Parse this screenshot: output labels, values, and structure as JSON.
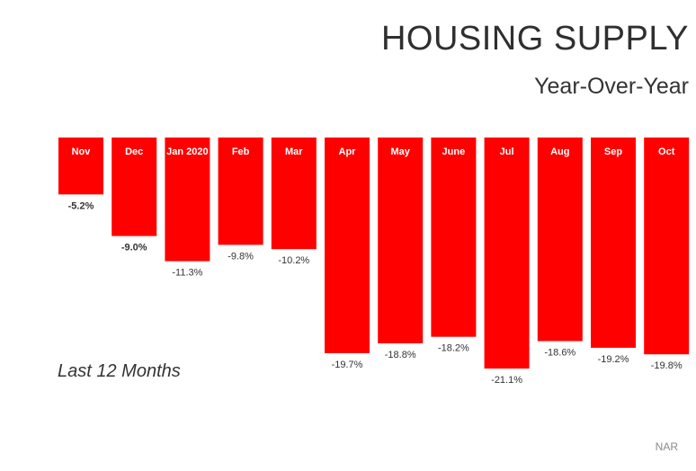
{
  "header": {
    "title": "HOUSING SUPPLY",
    "subtitle": "Year-Over-Year"
  },
  "note": "Last 12 Months",
  "source": "NAR",
  "colors": {
    "bar": "#ff0000",
    "bar_label_text": "#ffffff",
    "value_text": "#333333"
  },
  "chart_data": {
    "type": "bar",
    "categories": [
      "Nov",
      "Dec",
      "Jan 2020",
      "Feb",
      "Mar",
      "Apr",
      "May",
      "June",
      "Jul",
      "Aug",
      "Sep",
      "Oct"
    ],
    "values": [
      -5.2,
      -9.0,
      -11.3,
      -9.8,
      -10.2,
      -19.7,
      -18.8,
      -18.2,
      -21.1,
      -18.6,
      -19.2,
      -19.8
    ],
    "value_labels": [
      "-5.2%",
      "-9.0%",
      "-11.3%",
      "-9.8%",
      "-10.2%",
      "-19.7%",
      "-18.8%",
      "-18.2%",
      "-21.1%",
      "-18.6%",
      "-19.2%",
      "-19.8%"
    ],
    "title": "HOUSING SUPPLY",
    "subtitle": "Year-Over-Year",
    "xlabel": "",
    "ylabel": "",
    "ylim": [
      -21.1,
      0
    ],
    "grid": false,
    "legend": "none"
  }
}
